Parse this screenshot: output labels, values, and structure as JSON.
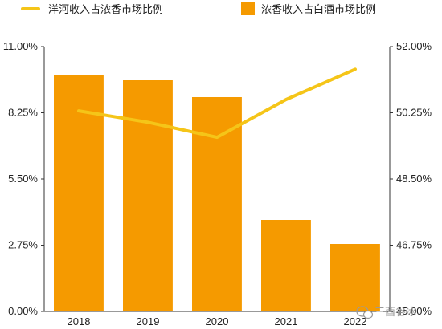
{
  "chart_data": {
    "type": "bar",
    "categories": [
      "2018",
      "2019",
      "2020",
      "2021",
      "2022"
    ],
    "series": [
      {
        "name": "浓香收入占白酒市场比例",
        "kind": "bar",
        "axis": "left",
        "color": "#F59A00",
        "values": [
          9.8,
          9.6,
          8.9,
          3.8,
          2.8
        ]
      },
      {
        "name": "洋河收入占浓香市场比例",
        "kind": "line",
        "axis": "right",
        "color": "#F5C518",
        "values": [
          50.3,
          50.0,
          49.6,
          50.6,
          51.4
        ]
      }
    ],
    "ylim_left": [
      0,
      11
    ],
    "ylim_right": [
      45,
      52
    ],
    "yticks_left": [
      "0.00%",
      "2.75%",
      "5.50%",
      "8.25%",
      "11.00%"
    ],
    "yticks_right": [
      "45.00%",
      "46.75%",
      "48.50%",
      "50.25%",
      "52.00%"
    ],
    "legend_position": "top",
    "grid": false
  },
  "watermark": {
    "text": "三酉谷冰",
    "icon": "wechat-icon"
  }
}
